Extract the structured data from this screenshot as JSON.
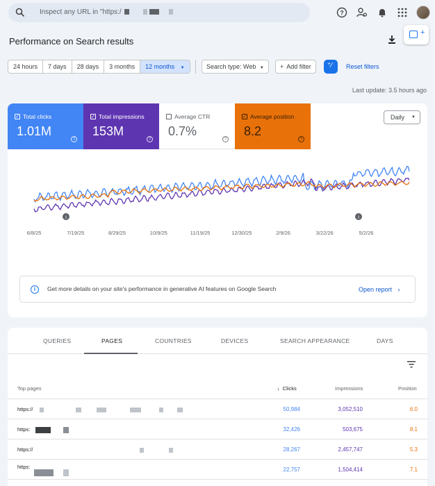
{
  "search": {
    "placeholder": "Inspect any URL in \"https:/"
  },
  "header_icons": [
    "help-icon",
    "manage-accounts-icon",
    "notifications-icon",
    "apps-grid-icon"
  ],
  "page": {
    "title": "Performance on Search results"
  },
  "filters": {
    "ranges": [
      "24 hours",
      "7 days",
      "28 days",
      "3 months",
      "12 months"
    ],
    "active_range": "12 months",
    "search_type": "Search type: Web",
    "add_filter": "Add filter",
    "reset": "Reset filters"
  },
  "last_update": "Last update: 3.5 hours ago",
  "metrics": {
    "clicks": {
      "label": "Total clicks",
      "value": "1.01M",
      "checked": true,
      "color": "#4285f4"
    },
    "impressions": {
      "label": "Total impressions",
      "value": "153M",
      "checked": true,
      "color": "#5e35b1"
    },
    "ctr": {
      "label": "Average CTR",
      "value": "0.7%",
      "checked": false
    },
    "position": {
      "label": "Average position",
      "value": "8.2",
      "checked": true,
      "color": "#e8710a"
    }
  },
  "granularity": "Daily",
  "chart_data": {
    "type": "line",
    "x_tick_labels": [
      "6/8/25",
      "7/19/25",
      "8/29/25",
      "10/9/25",
      "11/19/25",
      "12/30/25",
      "2/9/26",
      "3/22/26",
      "5/2/26"
    ],
    "series": [
      {
        "color": "#4285f4"
      },
      {
        "color": "#5e35b1"
      },
      {
        "color": "#e8710a"
      }
    ],
    "annotation_markers": [
      "i",
      "i"
    ],
    "grid": false
  },
  "info_banner": {
    "text": "Get more details on your site's performance in generative AI features on Google Search",
    "link": "Open report"
  },
  "tabs": [
    "QUERIES",
    "PAGES",
    "COUNTRIES",
    "DEVICES",
    "SEARCH APPEARANCE",
    "DAYS"
  ],
  "active_tab": "PAGES",
  "table": {
    "headers": {
      "page": "Top pages",
      "clicks": "Clicks",
      "impressions": "Impressions",
      "position": "Position"
    },
    "rows": [
      {
        "url": "https://",
        "clicks": "50,984",
        "impressions": "3,052,510",
        "position": "6.0"
      },
      {
        "url": "https:",
        "clicks": "32,426",
        "impressions": "503,675",
        "position": "8.1"
      },
      {
        "url": "https://",
        "clicks": "28,267",
        "impressions": "2,457,747",
        "position": "5.3"
      },
      {
        "url": "https:",
        "clicks": "22,757",
        "impressions": "1,504,414",
        "position": "7.1"
      }
    ]
  }
}
